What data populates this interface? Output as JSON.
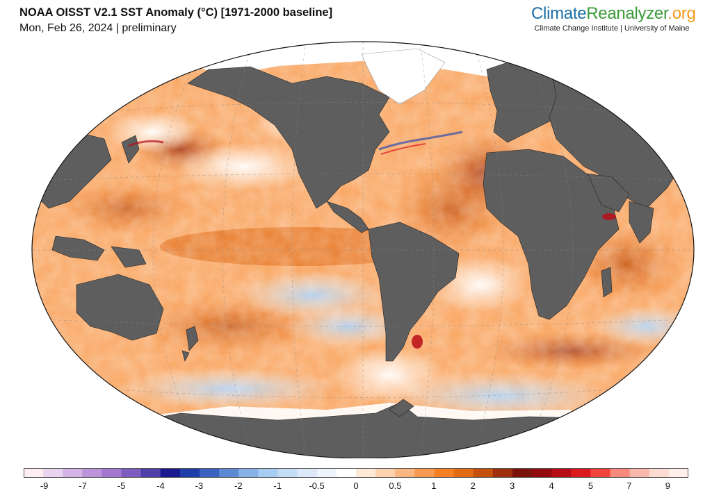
{
  "header": {
    "title": "NOAA OISST V2.1 SST Anomaly (°C) [1971-2000 baseline]",
    "subtitle": "Mon, Feb 26, 2024 | preliminary"
  },
  "brand": {
    "name_part1": "Climate",
    "name_part2": "Reanalyzer",
    "name_part3": ".org",
    "tagline": "Climate Change Institute | University of Maine",
    "colors": {
      "climate": "#1d6fa5",
      "reanalyzer": "#3a9a3a",
      "org": "#f09a1a"
    }
  },
  "map": {
    "projection": "Robinson-style world map",
    "land_color": "#5e5e5e",
    "sea_ice_color": "#ffffff",
    "gridlines": "dashed"
  },
  "legend": {
    "bins": [
      {
        "color": "#fdeef3"
      },
      {
        "color": "#e9d3ef"
      },
      {
        "color": "#d4b4e6"
      },
      {
        "color": "#bd94dc"
      },
      {
        "color": "#a377cf"
      },
      {
        "color": "#7e5bbf"
      },
      {
        "color": "#513eaa"
      },
      {
        "color": "#1b198f"
      },
      {
        "color": "#1e3da8"
      },
      {
        "color": "#3c62bf"
      },
      {
        "color": "#5d8ad3"
      },
      {
        "color": "#86b2e8"
      },
      {
        "color": "#a8cdf3"
      },
      {
        "color": "#c4ddf7"
      },
      {
        "color": "#dde9f8"
      },
      {
        "color": "#eef4fb"
      },
      {
        "color": "#ffffff"
      },
      {
        "color": "#fdebd8"
      },
      {
        "color": "#fcd3ad"
      },
      {
        "color": "#fbb67f"
      },
      {
        "color": "#f99a52"
      },
      {
        "color": "#f47f25"
      },
      {
        "color": "#e36a12"
      },
      {
        "color": "#c4500c"
      },
      {
        "color": "#9e2e0c"
      },
      {
        "color": "#7a1309"
      },
      {
        "color": "#930b0f"
      },
      {
        "color": "#b80d17"
      },
      {
        "color": "#da1a1f"
      },
      {
        "color": "#f2433d"
      },
      {
        "color": "#f78a7d"
      },
      {
        "color": "#f9b8aa"
      },
      {
        "color": "#fcdcd2"
      },
      {
        "color": "#fff0ea"
      }
    ],
    "ticks": [
      {
        "label": "-9",
        "pos": 0.031
      },
      {
        "label": "-7",
        "pos": 0.089
      },
      {
        "label": "-5",
        "pos": 0.147
      },
      {
        "label": "-4",
        "pos": 0.206
      },
      {
        "label": "-3",
        "pos": 0.264
      },
      {
        "label": "-2",
        "pos": 0.323
      },
      {
        "label": "-1",
        "pos": 0.382
      },
      {
        "label": "-0.5",
        "pos": 0.441
      },
      {
        "label": "0",
        "pos": 0.5
      },
      {
        "label": "0.5",
        "pos": 0.559
      },
      {
        "label": "1",
        "pos": 0.617
      },
      {
        "label": "2",
        "pos": 0.676
      },
      {
        "label": "3",
        "pos": 0.735
      },
      {
        "label": "4",
        "pos": 0.794
      },
      {
        "label": "5",
        "pos": 0.853
      },
      {
        "label": "7",
        "pos": 0.911
      },
      {
        "label": "9",
        "pos": 0.969
      }
    ]
  }
}
